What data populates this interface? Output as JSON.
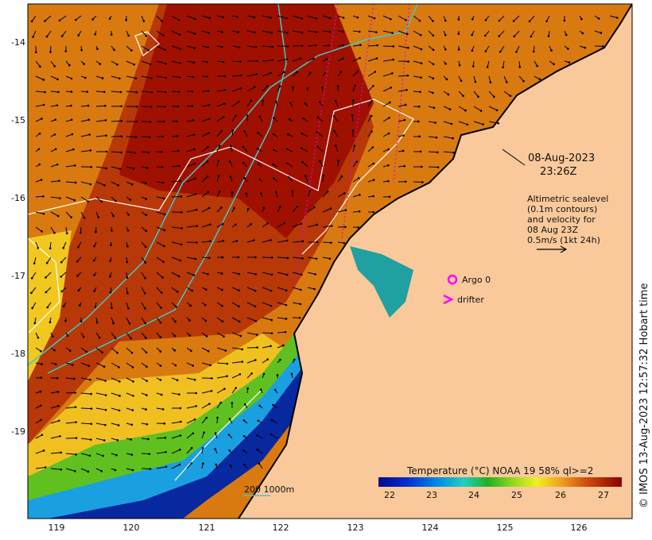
{
  "map": {
    "lat_ticks": [
      "-14",
      "-15",
      "-16",
      "-17",
      "-18",
      "-19"
    ],
    "lon_ticks": [
      "119",
      "120",
      "121",
      "122",
      "123",
      "124",
      "125",
      "126"
    ],
    "date_line1": "08-Aug-2023",
    "date_line2": "23:26Z",
    "legend_lines": [
      "Altimetric sealevel",
      "(0.1m contours)",
      "and velocity for",
      "08 Aug 23Z",
      "0.5m/s (1kt 24h)"
    ],
    "argo_label": "Argo 0",
    "drifter_label": "drifter",
    "isobath_label": "200  1000m",
    "colorbar_title": "Temperature (°C) NOAA 19 58% ql>=2",
    "colorbar_ticks": [
      "22",
      "23",
      "24",
      "25",
      "26",
      "27"
    ],
    "credit": "© IMOS 13-Aug-2023 12:57:32 Hobart time",
    "colors": {
      "land": "#f9c99b",
      "argo": "#ff00ff",
      "isobath": "#40c8c8",
      "contour": "#ffffff"
    }
  }
}
